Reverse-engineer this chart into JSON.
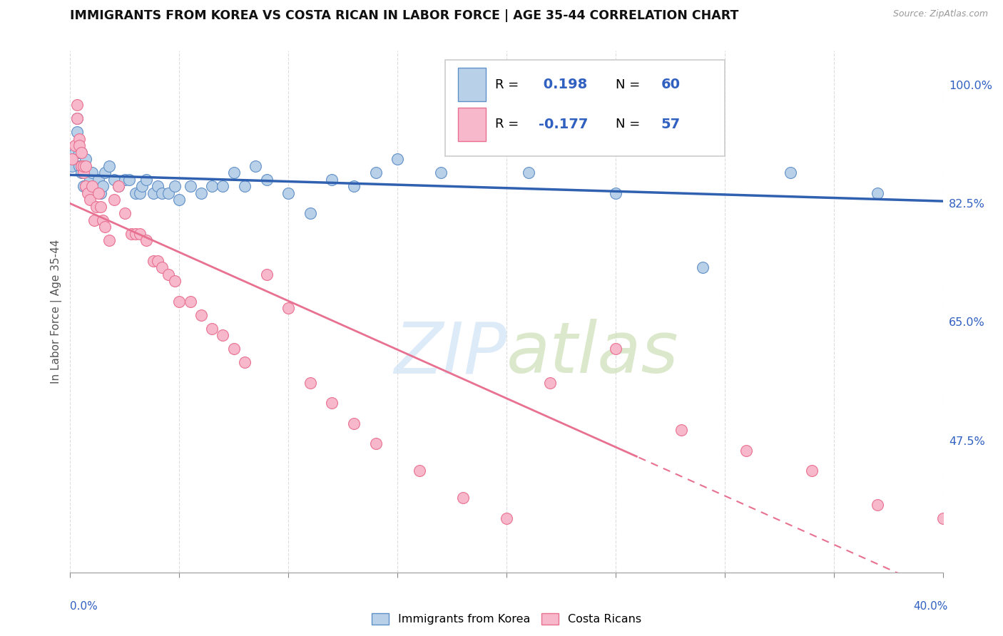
{
  "title": "IMMIGRANTS FROM KOREA VS COSTA RICAN IN LABOR FORCE | AGE 35-44 CORRELATION CHART",
  "source": "Source: ZipAtlas.com",
  "ylabel": "In Labor Force | Age 35-44",
  "R_korea": 0.198,
  "N_korea": 60,
  "R_costa": -0.177,
  "N_costa": 57,
  "korea_color": "#b8d0e8",
  "korea_edge": "#6090c8",
  "costa_color": "#f8b8cc",
  "costa_edge": "#e87090",
  "korea_line_color": "#3060b0",
  "costa_line_color": "#e87090",
  "text_blue": "#3060c0",
  "xlim": [
    0.0,
    0.4
  ],
  "ylim": [
    0.28,
    1.05
  ],
  "ytick_vals": [
    0.3,
    0.475,
    0.65,
    0.825,
    1.0
  ],
  "ytick_labels": [
    "",
    "47.5%",
    "65.0%",
    "82.5%",
    "100.0%"
  ],
  "legend_label_korea": "Immigrants from Korea",
  "legend_label_costa": "Costa Ricans",
  "korea_x": [
    0.001,
    0.002,
    0.003,
    0.003,
    0.004,
    0.004,
    0.005,
    0.005,
    0.005,
    0.006,
    0.006,
    0.007,
    0.007,
    0.008,
    0.008,
    0.009,
    0.009,
    0.01,
    0.011,
    0.012,
    0.013,
    0.014,
    0.015,
    0.016,
    0.018,
    0.02,
    0.022,
    0.025,
    0.027,
    0.03,
    0.032,
    0.033,
    0.035,
    0.038,
    0.04,
    0.042,
    0.045,
    0.048,
    0.05,
    0.055,
    0.06,
    0.065,
    0.07,
    0.075,
    0.08,
    0.085,
    0.09,
    0.1,
    0.11,
    0.12,
    0.13,
    0.14,
    0.15,
    0.17,
    0.19,
    0.21,
    0.25,
    0.29,
    0.33,
    0.37
  ],
  "korea_y": [
    0.88,
    0.9,
    0.93,
    0.95,
    0.88,
    0.9,
    0.87,
    0.88,
    0.9,
    0.85,
    0.87,
    0.89,
    0.85,
    0.85,
    0.87,
    0.84,
    0.86,
    0.87,
    0.85,
    0.85,
    0.86,
    0.84,
    0.85,
    0.87,
    0.88,
    0.86,
    0.85,
    0.86,
    0.86,
    0.84,
    0.84,
    0.85,
    0.86,
    0.84,
    0.85,
    0.84,
    0.84,
    0.85,
    0.83,
    0.85,
    0.84,
    0.85,
    0.85,
    0.87,
    0.85,
    0.88,
    0.86,
    0.84,
    0.81,
    0.86,
    0.85,
    0.87,
    0.89,
    0.87,
    0.94,
    0.87,
    0.84,
    0.73,
    0.87,
    0.84
  ],
  "costa_x": [
    0.001,
    0.002,
    0.003,
    0.003,
    0.004,
    0.004,
    0.005,
    0.005,
    0.006,
    0.006,
    0.007,
    0.007,
    0.008,
    0.009,
    0.01,
    0.011,
    0.012,
    0.013,
    0.014,
    0.015,
    0.016,
    0.018,
    0.02,
    0.022,
    0.025,
    0.028,
    0.03,
    0.032,
    0.035,
    0.038,
    0.04,
    0.042,
    0.045,
    0.048,
    0.05,
    0.055,
    0.06,
    0.065,
    0.07,
    0.075,
    0.08,
    0.09,
    0.1,
    0.11,
    0.12,
    0.13,
    0.14,
    0.16,
    0.18,
    0.2,
    0.22,
    0.25,
    0.28,
    0.31,
    0.34,
    0.37,
    0.4
  ],
  "costa_y": [
    0.89,
    0.91,
    0.97,
    0.95,
    0.92,
    0.91,
    0.88,
    0.9,
    0.87,
    0.88,
    0.85,
    0.88,
    0.84,
    0.83,
    0.85,
    0.8,
    0.82,
    0.84,
    0.82,
    0.8,
    0.79,
    0.77,
    0.83,
    0.85,
    0.81,
    0.78,
    0.78,
    0.78,
    0.77,
    0.74,
    0.74,
    0.73,
    0.72,
    0.71,
    0.68,
    0.68,
    0.66,
    0.64,
    0.63,
    0.61,
    0.59,
    0.72,
    0.67,
    0.56,
    0.53,
    0.5,
    0.47,
    0.43,
    0.39,
    0.36,
    0.56,
    0.61,
    0.49,
    0.46,
    0.43,
    0.38,
    0.36
  ]
}
